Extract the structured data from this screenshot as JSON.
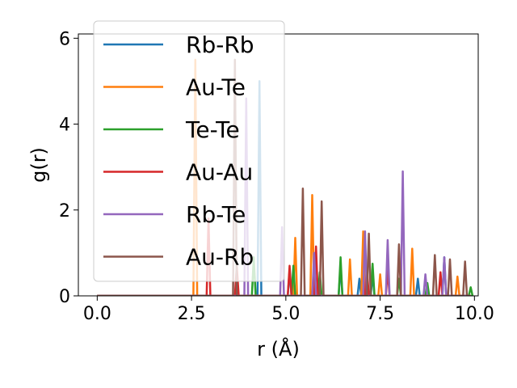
{
  "chart_data": {
    "type": "line",
    "xlabel": "r (Å)",
    "ylabel": "g(r)",
    "xlim": [
      -0.5,
      10.1
    ],
    "ylim": [
      0,
      6.1
    ],
    "xticks": [
      0.0,
      2.5,
      5.0,
      7.5,
      10.0
    ],
    "xtick_labels": [
      "0.0",
      "2.5",
      "5.0",
      "7.5",
      "10.0"
    ],
    "yticks": [
      0,
      2,
      4,
      6
    ],
    "ytick_labels": [
      "0",
      "2",
      "4",
      "6"
    ],
    "grid": false,
    "legend_position": "top-left",
    "series": [
      {
        "name": "Rb-Rb",
        "color": "#1f77b4",
        "peaks": [
          [
            4.3,
            5.0
          ],
          [
            5.1,
            0.6
          ],
          [
            6.45,
            0.7
          ],
          [
            6.95,
            0.4
          ],
          [
            7.3,
            0.5
          ],
          [
            8.5,
            0.4
          ],
          [
            9.2,
            0.9
          ]
        ]
      },
      {
        "name": "Au-Te",
        "color": "#ff7f0e",
        "peaks": [
          [
            2.6,
            5.5
          ],
          [
            5.25,
            1.35
          ],
          [
            5.7,
            2.35
          ],
          [
            6.7,
            0.85
          ],
          [
            7.05,
            1.5
          ],
          [
            7.5,
            0.5
          ],
          [
            8.35,
            1.1
          ],
          [
            9.55,
            0.45
          ]
        ]
      },
      {
        "name": "Te-Te",
        "color": "#2ca02c",
        "peaks": [
          [
            4.15,
            0.9
          ],
          [
            5.2,
            0.7
          ],
          [
            5.9,
            0.55
          ],
          [
            6.45,
            0.9
          ],
          [
            7.3,
            0.75
          ],
          [
            8.0,
            0.4
          ],
          [
            8.75,
            0.3
          ],
          [
            9.9,
            0.2
          ]
        ]
      },
      {
        "name": "Au-Au",
        "color": "#d62728",
        "peaks": [
          [
            2.95,
            1.8
          ],
          [
            3.7,
            0.7
          ],
          [
            5.1,
            0.7
          ],
          [
            5.8,
            1.15
          ],
          [
            7.15,
            0.65
          ],
          [
            7.7,
            0.6
          ],
          [
            9.1,
            0.55
          ]
        ]
      },
      {
        "name": "Rb-Te",
        "color": "#9467bd",
        "peaks": [
          [
            3.95,
            4.6
          ],
          [
            4.9,
            1.6
          ],
          [
            5.75,
            1.0
          ],
          [
            7.1,
            1.5
          ],
          [
            7.7,
            1.3
          ],
          [
            8.1,
            2.9
          ],
          [
            8.7,
            0.5
          ],
          [
            9.2,
            0.9
          ]
        ]
      },
      {
        "name": "Au-Rb",
        "color": "#8c564b",
        "peaks": [
          [
            3.65,
            5.5
          ],
          [
            5.45,
            2.5
          ],
          [
            5.95,
            2.2
          ],
          [
            7.2,
            1.45
          ],
          [
            8.0,
            1.2
          ],
          [
            8.95,
            0.95
          ],
          [
            9.35,
            0.85
          ],
          [
            9.75,
            0.8
          ]
        ]
      }
    ]
  }
}
